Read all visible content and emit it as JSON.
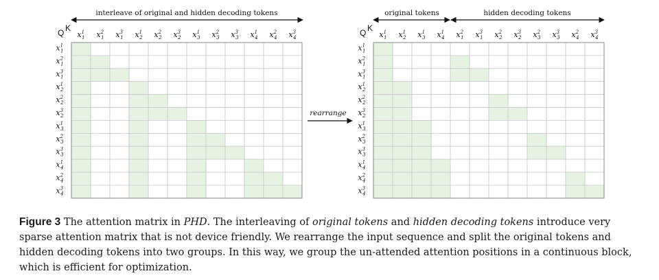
{
  "colors": {
    "attended": "#e6f3e2",
    "grid": "#c9c9c9",
    "border": "#8a8a8a",
    "text": "#111111"
  },
  "left_matrix": {
    "top_label": "interleave of original and hidden decoding tokens",
    "q_label": "Q",
    "k_label": "K",
    "keys": [
      [
        "1",
        "1"
      ],
      [
        "1",
        "2"
      ],
      [
        "1",
        "3"
      ],
      [
        "2",
        "1"
      ],
      [
        "2",
        "2"
      ],
      [
        "2",
        "3"
      ],
      [
        "3",
        "1"
      ],
      [
        "3",
        "2"
      ],
      [
        "3",
        "3"
      ],
      [
        "4",
        "1"
      ],
      [
        "4",
        "2"
      ],
      [
        "4",
        "3"
      ]
    ],
    "queries": [
      [
        "1",
        "1"
      ],
      [
        "1",
        "2"
      ],
      [
        "1",
        "3"
      ],
      [
        "2",
        "1"
      ],
      [
        "2",
        "2"
      ],
      [
        "2",
        "3"
      ],
      [
        "3",
        "1"
      ],
      [
        "3",
        "2"
      ],
      [
        "3",
        "3"
      ],
      [
        "4",
        "1"
      ],
      [
        "4",
        "2"
      ],
      [
        "4",
        "3"
      ]
    ],
    "mask": [
      [
        1,
        0,
        0,
        0,
        0,
        0,
        0,
        0,
        0,
        0,
        0,
        0
      ],
      [
        1,
        1,
        0,
        0,
        0,
        0,
        0,
        0,
        0,
        0,
        0,
        0
      ],
      [
        1,
        1,
        1,
        0,
        0,
        0,
        0,
        0,
        0,
        0,
        0,
        0
      ],
      [
        1,
        0,
        0,
        1,
        0,
        0,
        0,
        0,
        0,
        0,
        0,
        0
      ],
      [
        1,
        0,
        0,
        1,
        1,
        0,
        0,
        0,
        0,
        0,
        0,
        0
      ],
      [
        1,
        0,
        0,
        1,
        1,
        1,
        0,
        0,
        0,
        0,
        0,
        0
      ],
      [
        1,
        0,
        0,
        1,
        0,
        0,
        1,
        0,
        0,
        0,
        0,
        0
      ],
      [
        1,
        0,
        0,
        1,
        0,
        0,
        1,
        1,
        0,
        0,
        0,
        0
      ],
      [
        1,
        0,
        0,
        1,
        0,
        0,
        1,
        1,
        1,
        0,
        0,
        0
      ],
      [
        1,
        0,
        0,
        1,
        0,
        0,
        1,
        0,
        0,
        1,
        0,
        0
      ],
      [
        1,
        0,
        0,
        1,
        0,
        0,
        1,
        0,
        0,
        1,
        1,
        0
      ],
      [
        1,
        0,
        0,
        1,
        0,
        0,
        1,
        0,
        0,
        1,
        1,
        1
      ]
    ]
  },
  "arrow_label": "rearrange",
  "right_matrix": {
    "original_label": "original tokens",
    "hidden_label": "hidden decoding tokens",
    "q_label": "Q",
    "k_label": "K",
    "keys": [
      [
        "1",
        "1"
      ],
      [
        "2",
        "1"
      ],
      [
        "3",
        "1"
      ],
      [
        "4",
        "1"
      ],
      [
        "1",
        "2"
      ],
      [
        "1",
        "3"
      ],
      [
        "2",
        "2"
      ],
      [
        "2",
        "3"
      ],
      [
        "3",
        "2"
      ],
      [
        "3",
        "3"
      ],
      [
        "4",
        "2"
      ],
      [
        "4",
        "3"
      ]
    ],
    "queries": [
      [
        "1",
        "1"
      ],
      [
        "1",
        "2"
      ],
      [
        "1",
        "3"
      ],
      [
        "2",
        "1"
      ],
      [
        "2",
        "2"
      ],
      [
        "2",
        "3"
      ],
      [
        "3",
        "1"
      ],
      [
        "3",
        "2"
      ],
      [
        "3",
        "3"
      ],
      [
        "4",
        "1"
      ],
      [
        "4",
        "2"
      ],
      [
        "4",
        "3"
      ]
    ],
    "mask": [
      [
        1,
        0,
        0,
        0,
        0,
        0,
        0,
        0,
        0,
        0,
        0,
        0
      ],
      [
        1,
        0,
        0,
        0,
        1,
        0,
        0,
        0,
        0,
        0,
        0,
        0
      ],
      [
        1,
        0,
        0,
        0,
        1,
        1,
        0,
        0,
        0,
        0,
        0,
        0
      ],
      [
        1,
        1,
        0,
        0,
        0,
        0,
        0,
        0,
        0,
        0,
        0,
        0
      ],
      [
        1,
        1,
        0,
        0,
        0,
        0,
        1,
        0,
        0,
        0,
        0,
        0
      ],
      [
        1,
        1,
        0,
        0,
        0,
        0,
        1,
        1,
        0,
        0,
        0,
        0
      ],
      [
        1,
        1,
        1,
        0,
        0,
        0,
        0,
        0,
        0,
        0,
        0,
        0
      ],
      [
        1,
        1,
        1,
        0,
        0,
        0,
        0,
        0,
        1,
        0,
        0,
        0
      ],
      [
        1,
        1,
        1,
        0,
        0,
        0,
        0,
        0,
        1,
        1,
        0,
        0
      ],
      [
        1,
        1,
        1,
        1,
        0,
        0,
        0,
        0,
        0,
        0,
        0,
        0
      ],
      [
        1,
        1,
        1,
        1,
        0,
        0,
        0,
        0,
        0,
        0,
        1,
        0
      ],
      [
        1,
        1,
        1,
        1,
        0,
        0,
        0,
        0,
        0,
        0,
        1,
        1
      ]
    ]
  },
  "caption": {
    "label": "Figure 3",
    "s1": " The attention matrix in ",
    "phd": "PHD",
    "s2": ". The interleaving of ",
    "orig": "original tokens",
    "s3": " and ",
    "hidden": "hidden decoding tokens",
    "s4": " introduce very sparse attention matrix that is not device friendly. We rearrange the input sequence and split the original tokens and hidden decoding tokens into two groups. In this way, we group the un-attended attention positions in a continuous block, which is efficient for optimization."
  }
}
